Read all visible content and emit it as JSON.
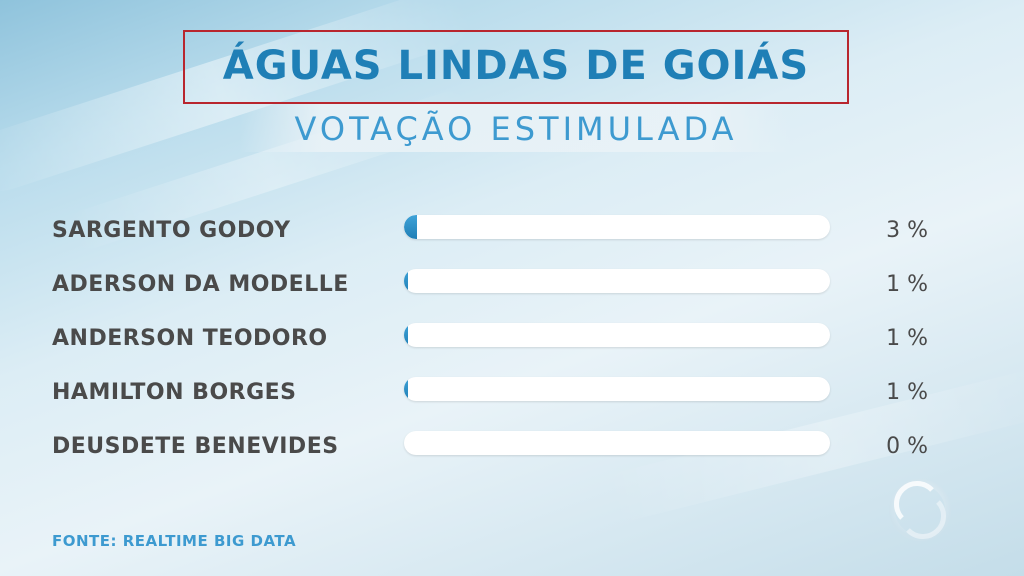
{
  "header": {
    "title": "ÁGUAS LINDAS DE GOIÁS",
    "subtitle": "VOTAÇÃO ESTIMULADA"
  },
  "chart_data": {
    "type": "bar",
    "orientation": "horizontal",
    "title": "ÁGUAS LINDAS DE GOIÁS",
    "subtitle": "VOTAÇÃO ESTIMULADA",
    "categories": [
      "SARGENTO GODOY",
      "ADERSON DA MODELLE",
      "ANDERSON TEODORO",
      "HAMILTON BORGES",
      "DEUSDETE BENEVIDES"
    ],
    "values": [
      3,
      1,
      1,
      1,
      0
    ],
    "value_labels": [
      "3 %",
      "1 %",
      "1 %",
      "1 %",
      "0 %"
    ],
    "unit": "%",
    "xlim": [
      0,
      100
    ],
    "grid": false,
    "legend": "none",
    "bar_color": "#1f7fb6",
    "track_color": "#ffffff"
  },
  "footer": {
    "source": "FONTE: REALTIME BIG DATA"
  },
  "colors": {
    "title": "#1f7fb6",
    "subtitle": "#3d9ad0",
    "frame": "#b8262e",
    "label": "#4a4a4a"
  },
  "icons": {
    "logo": "broadcaster-logo-icon"
  }
}
